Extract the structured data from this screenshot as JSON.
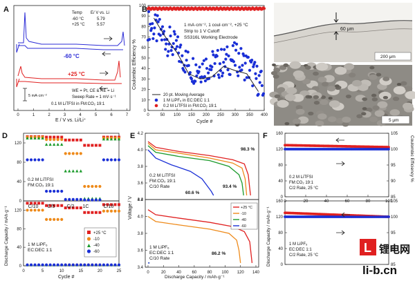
{
  "panels": {
    "A": {
      "letter": "A",
      "table_header": [
        "Temp",
        "E/ V vs. Li"
      ],
      "table_rows": [
        [
          "-60 °C",
          "5.79"
        ],
        [
          "+25 °C",
          "5.57"
        ]
      ],
      "trace_label_cold": "-60 °C",
      "trace_label_warm": "+25 °C",
      "scale_bar": "5 mA·cm⁻²",
      "notes": [
        "WE = Pt, CE & RE = Li",
        "Sweep Rate = 1 mV·s⁻¹",
        "0.1 M LiTFSI in FM:CO₂ 19:1"
      ],
      "xlabel": "E / V vs. Li/Li⁺",
      "xticks": [
        "0",
        "1",
        "2",
        "3",
        "4",
        "5",
        "6",
        "7"
      ],
      "colors": {
        "cold": "#2b2bd6",
        "warm": "#e02020"
      }
    },
    "B": {
      "letter": "B",
      "ylabel": "Coulombic Efficiency %",
      "xlabel": "Cycle #",
      "notes": [
        "1 mA·cm⁻², 1 coul·cm⁻², +25 °C",
        "Strip to 1 V Cutoff",
        "SS316L Working Electrode"
      ],
      "legend": [
        "20 pt. Moving Average",
        "1 M LiPF₆ in EC:DEC 1:1",
        "0.2 M LiTFSI in FM:CO₂ 19:1"
      ],
      "colors": {
        "blue": "#1a2fd6",
        "red": "#e02020",
        "avg": "#222222"
      }
    },
    "C": {
      "letter": "C",
      "thickness": "60 μm",
      "scale_top": "200 μm",
      "scale_bottom": "5 μm"
    },
    "D": {
      "letter": "D",
      "ylabel": "Discharge Capacity / mAh·g⁻¹",
      "xlabel": "Cycle #",
      "rate_labels": [
        "C/10",
        "C/5",
        "C/2",
        "1C",
        "C/10"
      ],
      "top_caption": [
        "0.2 M LiTFSI",
        "FM:CO₂ 19:1"
      ],
      "bottom_caption": [
        "1 M LiPF₆",
        "EC:DEC 1:1"
      ],
      "legend": [
        "+25 °C",
        "-10",
        "-40",
        "-60"
      ],
      "colors": {
        "r25": "#e02020",
        "m10": "#ee8a1a",
        "m40": "#1a9a2a",
        "m60": "#1a2fd6"
      }
    },
    "E": {
      "letter": "E",
      "ylabel": "Voltage / V",
      "xlabel": "Discharge Capacity / mAh·g⁻¹",
      "top_caption": [
        "0.2 M LiTFSI",
        "FM:CO₂ 19:1",
        "C/10 Rate"
      ],
      "bottom_caption": [
        "1 M LiPF₆",
        "EC:DEC 1:1",
        "C/10 Rate"
      ],
      "annotations_top": [
        "98.3 %",
        "93.4 %",
        "60.6 %"
      ],
      "annotation_bottom": "86.2 %",
      "legend": [
        "+25 °C",
        "-10",
        "-40",
        "-60"
      ]
    },
    "F": {
      "letter": "F",
      "ylabel_left": "Discharge Capacity / mAh·g⁻¹",
      "ylabel_right": "Coulombic Efficiency %",
      "top_caption": [
        "0.2 M LiTFSI",
        "FM:CO₂ 19:1",
        "C/2 Rate, 25 °C"
      ],
      "bottom_caption": [
        "1 M LiPF₆",
        "EC:DEC 1:1",
        "C/2 Rate, 25 °C"
      ]
    }
  },
  "watermark": {
    "main": "锂电网",
    "url": "li-b.cn",
    "logo_letter": "L"
  },
  "chart_data": [
    {
      "id": "B",
      "type": "scatter",
      "xlabel": "Cycle #",
      "ylabel": "Coulombic Efficiency %",
      "xlim": [
        0,
        400
      ],
      "ylim": [
        0,
        100
      ],
      "xticks": [
        0,
        50,
        100,
        150,
        200,
        250,
        300,
        350,
        400
      ],
      "yticks": [
        0,
        10,
        20,
        30,
        40,
        50,
        60,
        70,
        80,
        90,
        100
      ],
      "series": [
        {
          "name": "0.2 M LiTFSI in FM:CO₂ 19:1",
          "x": [
            0,
            400
          ],
          "y": [
            97,
            97
          ]
        },
        {
          "name": "1 M LiPF₆ in EC:DEC 1:1",
          "x": [
            0,
            50,
            100,
            150,
            200,
            250,
            300,
            350,
            400
          ],
          "y": [
            82,
            72,
            58,
            40,
            42,
            45,
            50,
            40,
            20
          ]
        },
        {
          "name": "20 pt. Moving Average",
          "x": [
            20,
            60,
            100,
            140,
            180,
            220,
            260,
            300,
            340,
            380
          ],
          "y": [
            88,
            70,
            55,
            35,
            30,
            32,
            42,
            38,
            35,
            18
          ]
        }
      ]
    },
    {
      "id": "D-top",
      "type": "scatter",
      "xlabel": "Cycle #",
      "ylabel": "Discharge Capacity / mAh·g⁻¹",
      "xlim": [
        0,
        25
      ],
      "ylim": [
        0,
        140
      ],
      "xticks": [
        0,
        5,
        10,
        15,
        20,
        25
      ],
      "yticks": [
        0,
        40,
        80,
        120
      ],
      "x": [
        1,
        2,
        3,
        4,
        5,
        6,
        7,
        8,
        9,
        10,
        11,
        12,
        13,
        14,
        15,
        16,
        17,
        18,
        19,
        20,
        21,
        22,
        23,
        24,
        25
      ],
      "series": [
        {
          "name": "+25 °C",
          "values": [
            133,
            133,
            133,
            133,
            133,
            132,
            132,
            132,
            132,
            132,
            126,
            126,
            126,
            126,
            126,
            115,
            115,
            115,
            115,
            115,
            132,
            132,
            132,
            132,
            132
          ]
        },
        {
          "name": "-10",
          "values": [
            132,
            132,
            132,
            132,
            132,
            127,
            127,
            127,
            127,
            127,
            98,
            98,
            98,
            98,
            98,
            30,
            30,
            30,
            30,
            30,
            130,
            130,
            130,
            130,
            130
          ]
        },
        {
          "name": "-40",
          "values": [
            130,
            130,
            130,
            130,
            130,
            117,
            117,
            117,
            117,
            117,
            62,
            62,
            62,
            62,
            62,
            5,
            5,
            5,
            5,
            5,
            128,
            128,
            128,
            128,
            128
          ]
        },
        {
          "name": "-60",
          "values": [
            85,
            85,
            85,
            85,
            85,
            20,
            20,
            20,
            20,
            20,
            3,
            3,
            3,
            3,
            3,
            2,
            2,
            2,
            2,
            2,
            85,
            85,
            85,
            85,
            85
          ]
        }
      ]
    },
    {
      "id": "D-bottom",
      "type": "scatter",
      "xlabel": "Cycle #",
      "ylabel": "Discharge Capacity / mAh·g⁻¹",
      "xlim": [
        0,
        25
      ],
      "ylim": [
        0,
        140
      ],
      "xticks": [
        0,
        5,
        10,
        15,
        20,
        25
      ],
      "yticks": [
        0,
        40,
        80,
        120
      ],
      "x": [
        1,
        2,
        3,
        4,
        5,
        6,
        7,
        8,
        9,
        10,
        11,
        12,
        13,
        14,
        15,
        16,
        17,
        18,
        19,
        20,
        21,
        22,
        23,
        24,
        25
      ],
      "series": [
        {
          "name": "+25 °C",
          "values": [
            135,
            135,
            135,
            135,
            135,
            130,
            130,
            130,
            130,
            130,
            125,
            125,
            125,
            125,
            125,
            115,
            115,
            115,
            115,
            115,
            132,
            132,
            132,
            132,
            132
          ]
        },
        {
          "name": "-10",
          "values": [
            120,
            120,
            120,
            120,
            120,
            100,
            100,
            100,
            100,
            100,
            2,
            2,
            2,
            2,
            2,
            2,
            2,
            2,
            2,
            2,
            118,
            118,
            118,
            118,
            118
          ]
        },
        {
          "name": "-40",
          "values": [
            2,
            2,
            2,
            2,
            2,
            2,
            2,
            2,
            2,
            2,
            2,
            2,
            2,
            2,
            2,
            2,
            2,
            2,
            2,
            2,
            2,
            2,
            2,
            2,
            2
          ]
        },
        {
          "name": "-60",
          "values": [
            2,
            2,
            2,
            2,
            2,
            2,
            2,
            2,
            2,
            2,
            2,
            2,
            2,
            2,
            2,
            2,
            2,
            2,
            2,
            2,
            2,
            2,
            2,
            2,
            2
          ]
        }
      ]
    },
    {
      "id": "E-top",
      "type": "line",
      "xlabel": "Discharge Capacity / mAh·g⁻¹",
      "ylabel": "Voltage / V",
      "xlim": [
        0,
        140
      ],
      "ylim": [
        3.4,
        4.2
      ],
      "yticks": [
        3.4,
        3.6,
        3.8,
        4.0,
        4.2
      ],
      "series": [
        {
          "name": "+25 °C",
          "x": [
            0,
            10,
            40,
            80,
            110,
            125,
            130,
            133
          ],
          "y": [
            4.1,
            4.03,
            3.98,
            3.93,
            3.88,
            3.83,
            3.7,
            3.45
          ]
        },
        {
          "name": "-10",
          "x": [
            0,
            10,
            40,
            80,
            110,
            122,
            126,
            128
          ],
          "y": [
            4.08,
            4.0,
            3.96,
            3.9,
            3.84,
            3.78,
            3.65,
            3.45
          ]
        },
        {
          "name": "-40",
          "x": [
            0,
            10,
            40,
            80,
            105,
            118,
            122,
            124
          ],
          "y": [
            4.05,
            3.97,
            3.92,
            3.87,
            3.8,
            3.7,
            3.6,
            3.45
          ]
        },
        {
          "name": "-60",
          "x": [
            0,
            10,
            30,
            55,
            70,
            78,
            82,
            85
          ],
          "y": [
            4.0,
            3.9,
            3.82,
            3.74,
            3.65,
            3.55,
            3.5,
            3.45
          ]
        }
      ]
    },
    {
      "id": "E-bottom",
      "type": "line",
      "xlabel": "Discharge Capacity / mAh·g⁻¹",
      "ylabel": "Voltage / V",
      "xlim": [
        0,
        140
      ],
      "ylim": [
        3.4,
        4.2
      ],
      "xticks": [
        0,
        20,
        40,
        60,
        80,
        100,
        120,
        140
      ],
      "yticks": [
        3.4,
        3.6,
        3.8,
        4.0,
        4.2
      ],
      "series": [
        {
          "name": "+25 °C",
          "x": [
            0,
            10,
            40,
            80,
            110,
            125,
            132,
            135
          ],
          "y": [
            4.08,
            4.02,
            3.98,
            3.93,
            3.88,
            3.82,
            3.7,
            3.45
          ]
        },
        {
          "name": "-10",
          "x": [
            0,
            10,
            40,
            80,
            105,
            115,
            118,
            120
          ],
          "y": [
            4.0,
            3.94,
            3.9,
            3.85,
            3.8,
            3.72,
            3.6,
            3.45
          ]
        },
        {
          "name": "-40",
          "x": [
            0,
            2
          ],
          "y": [
            3.45,
            3.45
          ]
        },
        {
          "name": "-60",
          "x": [
            0,
            2
          ],
          "y": [
            3.45,
            3.45
          ]
        }
      ]
    },
    {
      "id": "F-top",
      "type": "scatter",
      "ylabel": "Discharge Capacity / mAh·g⁻¹",
      "ylabel_right": "Coulombic Efficiency %",
      "xlim": [
        0,
        100
      ],
      "ylim": [
        0,
        160
      ],
      "ylim_right": [
        85,
        105
      ],
      "xticks": [
        0,
        20,
        40,
        60,
        80,
        100
      ],
      "yticks": [
        0,
        40,
        80,
        120,
        160
      ],
      "yticks_right": [
        85,
        90,
        95,
        100,
        105
      ],
      "series": [
        {
          "name": "Discharge Capacity",
          "x": [
            0,
            20,
            40,
            60,
            80,
            100
          ],
          "values": [
            130,
            129,
            128,
            127,
            126,
            125
          ]
        },
        {
          "name": "Coulombic Efficiency",
          "x": [
            0,
            20,
            40,
            60,
            80,
            100
          ],
          "values": [
            100,
            100,
            100,
            100,
            100,
            100
          ]
        }
      ]
    },
    {
      "id": "F-bottom",
      "type": "scatter",
      "ylabel": "Discharge Capacity / mAh·g⁻¹",
      "ylabel_right": "Coulombic Efficiency %",
      "xlim": [
        0,
        100
      ],
      "ylim": [
        0,
        160
      ],
      "ylim_right": [
        85,
        105
      ],
      "yticks": [
        0,
        40,
        80,
        120,
        160
      ],
      "yticks_right": [
        85,
        90,
        95,
        100,
        105
      ],
      "series": [
        {
          "name": "Discharge Capacity",
          "x": [
            0,
            20,
            40,
            60,
            80,
            100
          ],
          "values": [
            130,
            128,
            126,
            124,
            122,
            120
          ]
        },
        {
          "name": "Coulombic Efficiency",
          "x": [
            0,
            20,
            40,
            60,
            80,
            100
          ],
          "values": [
            100,
            100,
            100,
            100,
            100,
            100
          ]
        }
      ]
    }
  ]
}
